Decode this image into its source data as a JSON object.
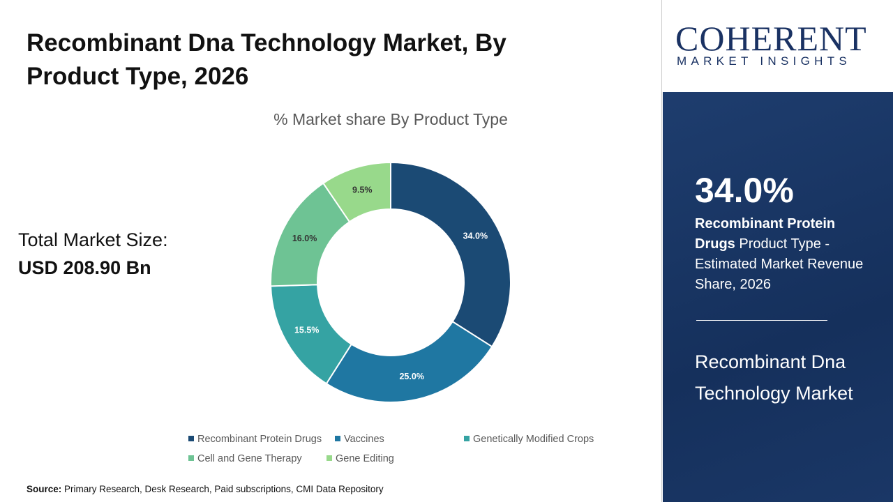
{
  "title": "Recombinant Dna Technology Market,  By Product Type, 2026",
  "total": {
    "label": "Total Market Size:",
    "value": "USD 208.90 Bn"
  },
  "source": {
    "label": "Source:",
    "text": " Primary Research, Desk Research, Paid subscriptions, CMI Data Repository"
  },
  "logo": {
    "top": "COHERENT",
    "bottom": "MARKET INSIGHTS"
  },
  "panel": {
    "percent": "34.0%",
    "highlight": "Recombinant Protein Drugs",
    "desc": " Product Type - Estimated Market Revenue Share, 2026",
    "market": "Recombinant Dna Technology Market"
  },
  "chart_data": {
    "type": "pie",
    "donut": true,
    "title": "% Market share  By Product Type",
    "categories": [
      "Recombinant Protein Drugs",
      "Vaccines",
      "Genetically Modified Crops",
      "Cell and Gene Therapy",
      "Gene Editing"
    ],
    "values": [
      34.0,
      25.0,
      15.5,
      16.0,
      9.5
    ],
    "labels": [
      "34.0%",
      "25.0%",
      "15.5%",
      "16.0%",
      "9.5%"
    ],
    "colors": [
      "#1b4a74",
      "#1f77a2",
      "#35a3a3",
      "#6ec394",
      "#98d98b"
    ],
    "legend": "bottom"
  }
}
